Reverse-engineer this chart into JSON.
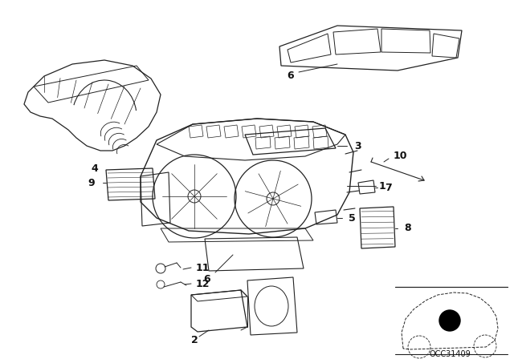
{
  "bg_color": "#ffffff",
  "diagram_code": "OCC31409",
  "lc": "#222222",
  "tc": "#111111"
}
